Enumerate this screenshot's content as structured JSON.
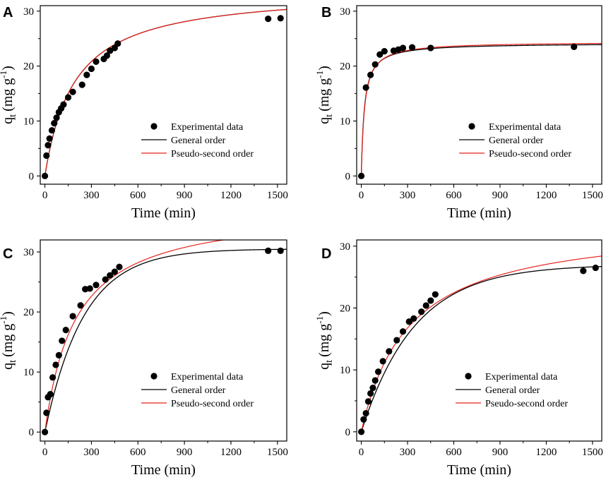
{
  "chart_data": [
    {
      "panel": "A",
      "type": "scatter",
      "xlabel": "Time (min)",
      "ylabel": "q",
      "ylabel_sub": "t",
      "ylabel_unit": "(mg g",
      "ylabel_exp": "-1",
      "xlim": [
        -30,
        1560
      ],
      "ylim": [
        -1.5,
        31
      ],
      "xticks": [
        0,
        300,
        600,
        900,
        1200,
        1500
      ],
      "yticks": [
        0,
        10,
        20,
        30
      ],
      "legend": [
        "Experimental data",
        "General order",
        "Pseudo-second order"
      ],
      "points": [
        [
          0,
          0
        ],
        [
          10,
          3.7
        ],
        [
          20,
          5.6
        ],
        [
          30,
          6.8
        ],
        [
          45,
          8.3
        ],
        [
          60,
          9.6
        ],
        [
          75,
          10.6
        ],
        [
          90,
          11.6
        ],
        [
          105,
          12.3
        ],
        [
          120,
          13.0
        ],
        [
          150,
          14.3
        ],
        [
          180,
          15.3
        ],
        [
          240,
          16.6
        ],
        [
          270,
          18.4
        ],
        [
          300,
          19.5
        ],
        [
          330,
          20.8
        ],
        [
          380,
          21.3
        ],
        [
          400,
          21.9
        ],
        [
          420,
          22.8
        ],
        [
          450,
          23.3
        ],
        [
          470,
          24.1
        ],
        [
          1440,
          28.6
        ],
        [
          1520,
          28.7
        ]
      ],
      "curves": [
        {
          "name": "General order",
          "color": "#000000",
          "model": "so",
          "qe": 34.0,
          "k": 0.000155
        },
        {
          "name": "Pseudo-second order",
          "color": "#e8231d",
          "model": "so",
          "qe": 34.0,
          "k": 0.000155
        }
      ]
    },
    {
      "panel": "B",
      "type": "scatter",
      "xlabel": "Time (min)",
      "ylabel": "q",
      "ylabel_sub": "t",
      "ylabel_unit": "(mg g",
      "ylabel_exp": "-1",
      "xlim": [
        -30,
        1560
      ],
      "ylim": [
        -1.5,
        31
      ],
      "xticks": [
        0,
        300,
        600,
        900,
        1200,
        1500
      ],
      "yticks": [
        0,
        10,
        20,
        30
      ],
      "legend": [
        "Experimental data",
        "General order",
        "Pseudo-second order"
      ],
      "points": [
        [
          0,
          0
        ],
        [
          30,
          16.1
        ],
        [
          60,
          18.4
        ],
        [
          90,
          20.3
        ],
        [
          120,
          22.1
        ],
        [
          150,
          22.7
        ],
        [
          210,
          22.8
        ],
        [
          240,
          23.0
        ],
        [
          270,
          23.3
        ],
        [
          330,
          23.4
        ],
        [
          450,
          23.3
        ],
        [
          1380,
          23.5
        ]
      ],
      "curves": [
        {
          "name": "General order",
          "color": "#000000",
          "model": "so",
          "qe": 24.2,
          "k": 0.0021
        },
        {
          "name": "Pseudo-second order",
          "color": "#e8231d",
          "model": "so",
          "qe": 24.45,
          "k": 0.00195
        }
      ]
    },
    {
      "panel": "C",
      "type": "scatter",
      "xlabel": "Time (min)",
      "ylabel": "q",
      "ylabel_sub": "t",
      "ylabel_unit": "(mg g",
      "ylabel_exp": "-1",
      "xlim": [
        -30,
        1560
      ],
      "ylim": [
        -1.5,
        32
      ],
      "xticks": [
        0,
        300,
        600,
        900,
        1200,
        1500
      ],
      "yticks": [
        0,
        10,
        20,
        30
      ],
      "legend": [
        "Experimental data",
        "General order",
        "Pseudo-second order"
      ],
      "points": [
        [
          0,
          0
        ],
        [
          10,
          3.2
        ],
        [
          20,
          5.8
        ],
        [
          35,
          6.3
        ],
        [
          50,
          9.1
        ],
        [
          70,
          11.2
        ],
        [
          90,
          12.8
        ],
        [
          110,
          15.2
        ],
        [
          135,
          17.0
        ],
        [
          180,
          19.3
        ],
        [
          230,
          21.1
        ],
        [
          260,
          23.8
        ],
        [
          290,
          23.9
        ],
        [
          330,
          24.5
        ],
        [
          390,
          25.4
        ],
        [
          420,
          26.1
        ],
        [
          450,
          26.7
        ],
        [
          480,
          27.5
        ],
        [
          1440,
          30.2
        ],
        [
          1520,
          30.2
        ]
      ],
      "curves": [
        {
          "name": "General order",
          "color": "#000000",
          "model": "go",
          "qe": 30.5,
          "k": 0.004
        },
        {
          "name": "Pseudo-second order",
          "color": "#e8231d",
          "model": "so",
          "qe": 37.5,
          "k": 0.000135
        }
      ]
    },
    {
      "panel": "D",
      "type": "scatter",
      "xlabel": "Time (min)",
      "ylabel": "q",
      "ylabel_sub": "t",
      "ylabel_unit": "(mg g",
      "ylabel_exp": "-1",
      "xlim": [
        -30,
        1560
      ],
      "ylim": [
        -1.5,
        31
      ],
      "xticks": [
        0,
        300,
        600,
        900,
        1200,
        1500
      ],
      "yticks": [
        0,
        10,
        20,
        30
      ],
      "legend": [
        "Experimental data",
        "General order",
        "Pseudo-second order"
      ],
      "points": [
        [
          0,
          0
        ],
        [
          15,
          2.0
        ],
        [
          30,
          3.0
        ],
        [
          45,
          4.9
        ],
        [
          60,
          6.2
        ],
        [
          75,
          7.1
        ],
        [
          90,
          8.3
        ],
        [
          110,
          9.7
        ],
        [
          140,
          11.4
        ],
        [
          180,
          13.0
        ],
        [
          230,
          14.8
        ],
        [
          270,
          16.2
        ],
        [
          310,
          17.8
        ],
        [
          340,
          18.3
        ],
        [
          390,
          19.4
        ],
        [
          420,
          20.4
        ],
        [
          450,
          21.2
        ],
        [
          480,
          22.2
        ],
        [
          1440,
          26.0
        ],
        [
          1520,
          26.5
        ]
      ],
      "curves": [
        {
          "name": "General order",
          "color": "#000000",
          "model": "go",
          "qe": 27.0,
          "k": 0.0029
        },
        {
          "name": "Pseudo-second order",
          "color": "#e8231d",
          "model": "so",
          "qe": 34.0,
          "k": 9.55e-05
        }
      ]
    }
  ]
}
